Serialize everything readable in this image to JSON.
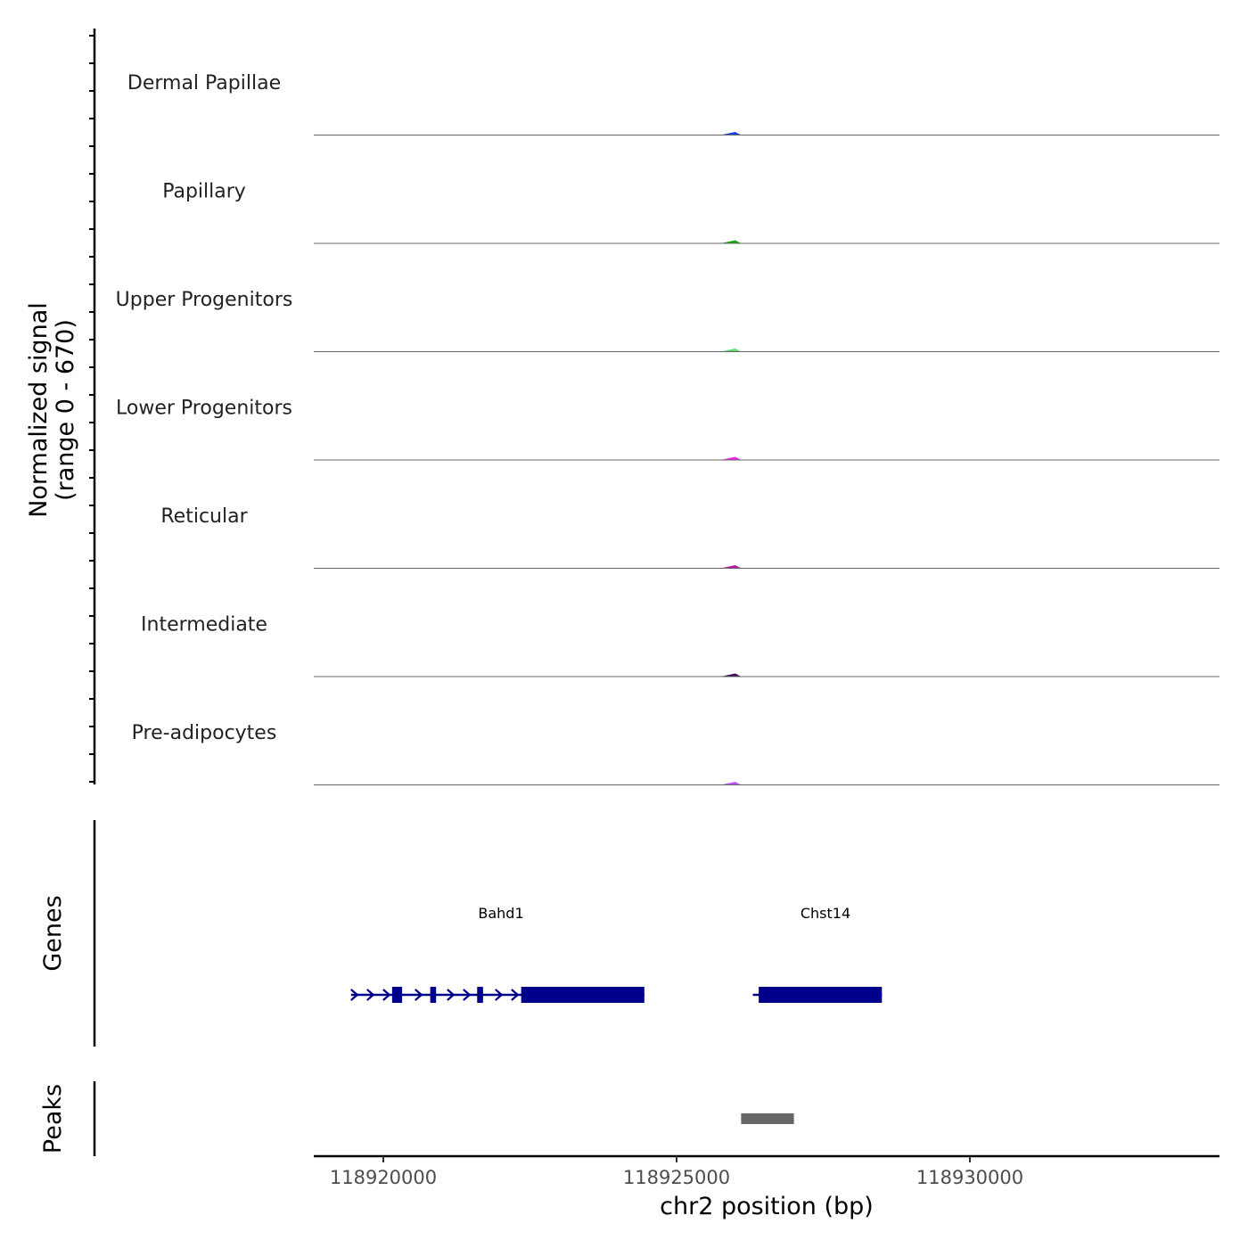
{
  "chart_data": {
    "type": "area",
    "region": {
      "chromosome": "chr2",
      "start": 118917500,
      "end": 118933000
    },
    "ylabel": "Normalized signal",
    "ylabel_range": "(range 0 - 670)",
    "ylim": [
      0,
      670
    ],
    "xlabel": "chr2 position (bp)",
    "x_ticks": [
      118920000,
      118925000,
      118930000
    ],
    "x_tick_labels": [
      "118920000",
      "118925000",
      "118930000"
    ],
    "bin_positions": [
      118917500,
      118917750,
      118918000,
      118918250,
      118918500,
      118918750,
      118919000,
      118919250,
      118919500,
      118919750,
      118920000,
      118920250,
      118920500,
      118920750,
      118921000,
      118921250,
      118921500,
      118921750,
      118922000,
      118922250,
      118922500,
      118922750,
      118923000,
      118923250,
      118923500,
      118923750,
      118924000,
      118924250,
      118924500,
      118924750,
      118925000,
      118925250,
      118925500,
      118925750,
      118926000,
      118926100,
      118926200,
      118926300,
      118926400,
      118926500,
      118926600,
      118926650,
      118926700,
      118926800,
      118926900,
      118927000,
      118927100,
      118927200,
      118927300,
      118927400,
      118927500,
      118927600,
      118927700,
      118927800,
      118927900,
      118928000,
      118928250,
      118928500,
      118928750,
      118929000,
      118929250,
      118929500,
      118929750,
      118930000,
      118930250,
      118930500,
      118930750,
      118931000,
      118931250,
      118931500,
      118931750,
      118932000,
      118932250,
      118932500,
      118932750,
      118933000
    ],
    "series": [
      {
        "name": "Dermal Papillae",
        "color": "#1540DD",
        "values": [
          0,
          0,
          0,
          0,
          0,
          0,
          0,
          0,
          0,
          0,
          0,
          0,
          0,
          0,
          0,
          0,
          0,
          0,
          0,
          0,
          0,
          0,
          0,
          0,
          0,
          0,
          0,
          0,
          0,
          0,
          0,
          0,
          0,
          0,
          20,
          0,
          0,
          0,
          0,
          0,
          0,
          0,
          0,
          0,
          0,
          0,
          0,
          0,
          0,
          0,
          0,
          0,
          0,
          0,
          0,
          0,
          0,
          0,
          0,
          0,
          0,
          0,
          0,
          0,
          0,
          0,
          0,
          0,
          0,
          0,
          0,
          0,
          0,
          0,
          0,
          0
        ]
      },
      {
        "name": "Papillary",
        "color": "#14A50C",
        "values": [
          0,
          0,
          0,
          0,
          0,
          0,
          0,
          0,
          0,
          0,
          0,
          0,
          0,
          0,
          0,
          0,
          0,
          0,
          0,
          0,
          0,
          0,
          0,
          0,
          0,
          0,
          0,
          0,
          0,
          0,
          0,
          0,
          0,
          0,
          20,
          0,
          0,
          0,
          0,
          0,
          0,
          0,
          0,
          0,
          0,
          0,
          0,
          0,
          0,
          0,
          0,
          0,
          0,
          0,
          0,
          0,
          0,
          0,
          0,
          0,
          0,
          0,
          0,
          0,
          0,
          0,
          0,
          0,
          0,
          0,
          0,
          0,
          0,
          0,
          0,
          0
        ]
      },
      {
        "name": "Upper Progenitors",
        "color": "#5EDD6E",
        "values": [
          0,
          0,
          0,
          0,
          0,
          0,
          0,
          0,
          0,
          0,
          0,
          0,
          0,
          0,
          0,
          0,
          0,
          0,
          0,
          0,
          0,
          0,
          0,
          0,
          0,
          0,
          0,
          0,
          0,
          0,
          0,
          0,
          0,
          0,
          20,
          0,
          0,
          0,
          0,
          0,
          0,
          0,
          0,
          0,
          0,
          0,
          0,
          0,
          0,
          0,
          0,
          0,
          0,
          0,
          0,
          0,
          0,
          0,
          0,
          0,
          0,
          0,
          0,
          0,
          0,
          0,
          0,
          0,
          0,
          0,
          0,
          0,
          0,
          0,
          0,
          0
        ]
      },
      {
        "name": "Lower Progenitors",
        "color": "#F01EEB",
        "values": [
          0,
          0,
          0,
          0,
          0,
          0,
          0,
          0,
          0,
          0,
          0,
          0,
          0,
          0,
          0,
          0,
          0,
          0,
          0,
          0,
          0,
          0,
          0,
          0,
          0,
          0,
          0,
          0,
          0,
          0,
          0,
          0,
          0,
          0,
          20,
          0,
          0,
          0,
          0,
          0,
          0,
          0,
          0,
          0,
          0,
          0,
          0,
          0,
          0,
          0,
          0,
          0,
          0,
          0,
          0,
          0,
          0,
          0,
          0,
          0,
          0,
          0,
          0,
          0,
          0,
          0,
          0,
          0,
          0,
          0,
          0,
          0,
          0,
          0,
          0,
          0
        ]
      },
      {
        "name": "Reticular",
        "color": "#B5179E",
        "values": [
          0,
          0,
          0,
          0,
          0,
          0,
          0,
          0,
          0,
          0,
          0,
          0,
          0,
          0,
          0,
          0,
          0,
          0,
          0,
          0,
          0,
          0,
          0,
          0,
          0,
          0,
          0,
          0,
          0,
          0,
          0,
          0,
          0,
          0,
          20,
          0,
          0,
          0,
          0,
          0,
          0,
          0,
          0,
          0,
          0,
          0,
          0,
          0,
          0,
          0,
          0,
          0,
          0,
          0,
          0,
          0,
          0,
          0,
          0,
          0,
          0,
          0,
          0,
          0,
          0,
          0,
          0,
          0,
          0,
          0,
          0,
          0,
          0,
          0,
          0,
          0
        ]
      },
      {
        "name": "Intermediate",
        "color": "#3E0A5C",
        "values": [
          0,
          0,
          0,
          0,
          0,
          0,
          0,
          0,
          0,
          0,
          0,
          0,
          0,
          0,
          0,
          0,
          0,
          0,
          0,
          0,
          0,
          0,
          0,
          0,
          0,
          0,
          0,
          0,
          0,
          0,
          0,
          0,
          0,
          0,
          20,
          0,
          0,
          0,
          0,
          0,
          0,
          0,
          0,
          0,
          0,
          0,
          0,
          0,
          0,
          0,
          0,
          0,
          0,
          0,
          0,
          0,
          0,
          0,
          0,
          0,
          0,
          0,
          0,
          0,
          0,
          0,
          0,
          0,
          0,
          0,
          0,
          0,
          0,
          0,
          0,
          0
        ]
      },
      {
        "name": "Pre-adipocytes",
        "color": "#BF55F5",
        "values": [
          0,
          0,
          0,
          0,
          0,
          0,
          0,
          0,
          0,
          0,
          0,
          0,
          0,
          0,
          0,
          0,
          0,
          0,
          0,
          0,
          0,
          0,
          0,
          0,
          0,
          0,
          0,
          0,
          0,
          0,
          0,
          0,
          0,
          0,
          20,
          0,
          0,
          0,
          0,
          0,
          0,
          0,
          0,
          0,
          0,
          0,
          0,
          0,
          0,
          0,
          0,
          0,
          0,
          0,
          0,
          0,
          0,
          0,
          0,
          0,
          0,
          0,
          0,
          0,
          0,
          0,
          0,
          0,
          0,
          0,
          0,
          0,
          0,
          0,
          0,
          0
        ]
      }
    ],
    "genes_track_label": "Genes",
    "genes": [
      {
        "name": "Bahd1",
        "start": 118919450,
        "end": 118924450,
        "strand": "+",
        "color": "#00008B",
        "exons": [
          [
            118920150,
            118920320
          ],
          [
            118920800,
            118920900
          ],
          [
            118921600,
            118921700
          ],
          [
            118922350,
            118924450
          ]
        ]
      },
      {
        "name": "Chst14",
        "start": 118926300,
        "end": 118928500,
        "strand": "+",
        "color": "#00008B",
        "exons": [
          [
            118926400,
            118928500
          ]
        ]
      }
    ],
    "peaks_track_label": "Peaks",
    "peaks": [
      {
        "start": 118926100,
        "end": 118927000,
        "color": "#666666"
      }
    ]
  }
}
